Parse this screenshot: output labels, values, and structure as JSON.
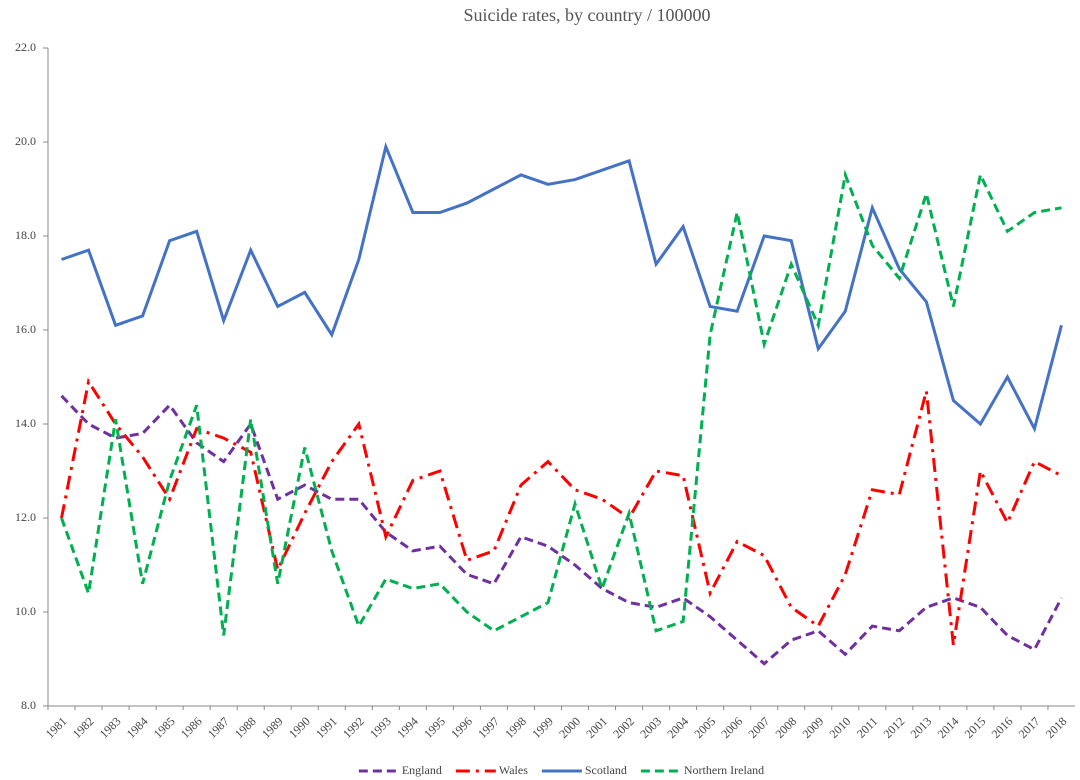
{
  "chart_data": {
    "type": "line",
    "title": "Suicide rates, by country / 100000",
    "categories": [
      "1981",
      "1982",
      "1983",
      "1984",
      "1985",
      "1986",
      "1987",
      "1988",
      "1989",
      "1990",
      "1991",
      "1992",
      "1993",
      "1994",
      "1995",
      "1996",
      "1997",
      "1998",
      "1999",
      "2000",
      "2001",
      "2002",
      "2003",
      "2004",
      "2005",
      "2006",
      "2007",
      "2008",
      "2009",
      "2010",
      "2011",
      "2012",
      "2013",
      "2014",
      "2015",
      "2016",
      "2017",
      "2018"
    ],
    "series": [
      {
        "name": "England",
        "color": "#7030a0",
        "dash": "dash",
        "values": [
          14.6,
          14.0,
          13.7,
          13.8,
          14.4,
          13.6,
          13.2,
          14.0,
          12.4,
          12.7,
          12.4,
          12.4,
          11.7,
          11.3,
          11.4,
          10.8,
          10.6,
          11.6,
          11.4,
          11.0,
          10.5,
          10.2,
          10.1,
          10.3,
          9.9,
          9.4,
          8.9,
          9.4,
          9.6,
          9.1,
          9.7,
          9.6,
          10.1,
          10.3,
          10.1,
          9.5,
          9.2,
          10.3
        ]
      },
      {
        "name": "Wales",
        "color": "#ff0000",
        "dash": "dashdot",
        "values": [
          12.0,
          14.9,
          14.0,
          13.3,
          12.4,
          13.9,
          13.7,
          13.4,
          10.9,
          12.1,
          13.2,
          14.0,
          11.6,
          12.8,
          13.0,
          11.1,
          11.3,
          12.7,
          13.2,
          12.6,
          12.4,
          12.0,
          13.0,
          12.9,
          10.4,
          11.5,
          11.2,
          10.1,
          9.7,
          10.8,
          12.6,
          12.5,
          14.7,
          9.3,
          13.0,
          11.9,
          13.2,
          12.9
        ]
      },
      {
        "name": "Scotland",
        "color": "#4472c4",
        "dash": "solid",
        "values": [
          17.5,
          17.7,
          16.1,
          16.3,
          17.9,
          18.1,
          16.2,
          17.7,
          16.5,
          16.8,
          15.9,
          17.5,
          19.9,
          18.5,
          18.5,
          18.7,
          19.0,
          19.3,
          19.1,
          19.2,
          19.4,
          19.6,
          17.4,
          18.2,
          16.5,
          16.4,
          18.0,
          17.9,
          15.6,
          16.4,
          18.6,
          17.3,
          16.6,
          14.5,
          14.0,
          15.0,
          13.9,
          16.1
        ]
      },
      {
        "name": "Northern Ireland",
        "color": "#00b050",
        "dash": "dash",
        "values": [
          12.0,
          10.4,
          14.1,
          10.6,
          12.8,
          14.4,
          9.5,
          14.1,
          10.6,
          13.5,
          11.3,
          9.7,
          10.7,
          10.5,
          10.6,
          10.0,
          9.6,
          9.9,
          10.2,
          12.3,
          10.5,
          12.1,
          9.6,
          9.8,
          15.9,
          18.5,
          15.7,
          17.4,
          16.1,
          19.3,
          17.8,
          17.1,
          18.9,
          16.5,
          19.3,
          18.1,
          18.5,
          18.6
        ]
      }
    ],
    "ylim": [
      8,
      22
    ],
    "yticks": [
      {
        "value": 8,
        "label": "8.0"
      },
      {
        "value": 10,
        "label": "10.0"
      },
      {
        "value": 12,
        "label": "12.0"
      },
      {
        "value": 14,
        "label": "14.0"
      },
      {
        "value": 16,
        "label": "16.0"
      },
      {
        "value": 18,
        "label": "18.0"
      },
      {
        "value": 20,
        "label": "20.0"
      },
      {
        "value": 22,
        "label": "22.0"
      }
    ],
    "grid": false,
    "legend": "bottom"
  }
}
